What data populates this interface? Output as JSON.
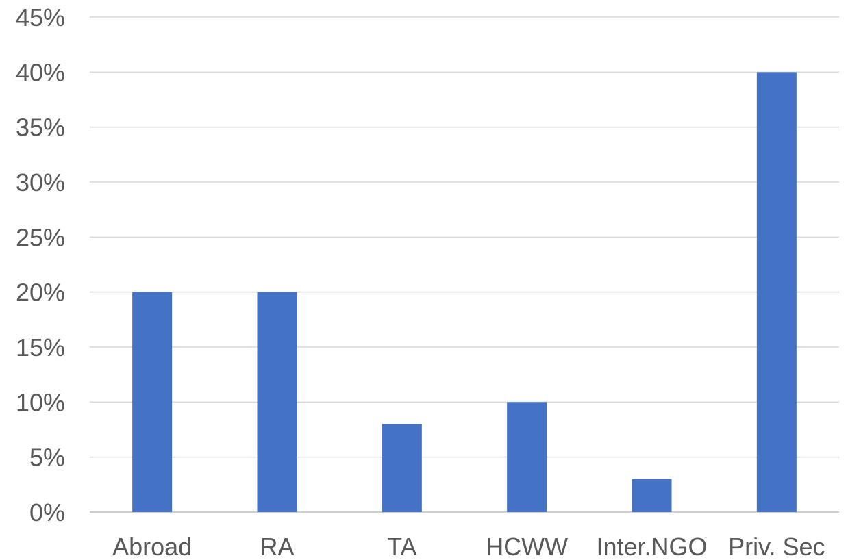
{
  "chart_data": {
    "type": "bar",
    "title": "",
    "xlabel": "",
    "ylabel": "",
    "categories": [
      "Abroad",
      "RA",
      "TA",
      "HCWW",
      "Inter.NGO",
      "Priv. Sec"
    ],
    "values": [
      20,
      20,
      8,
      10,
      3,
      40
    ],
    "value_unit": "%",
    "ylim": [
      0,
      45
    ],
    "y_ticks": [
      "0%",
      "5%",
      "10%",
      "15%",
      "20%",
      "25%",
      "30%",
      "35%",
      "40%",
      "45%"
    ],
    "grid": "horizontal",
    "legend": "none",
    "colors": {
      "bar": "#4472C4",
      "grid": "#D9D9D9",
      "axis": "#BFBFBF",
      "text": "#595959"
    }
  }
}
